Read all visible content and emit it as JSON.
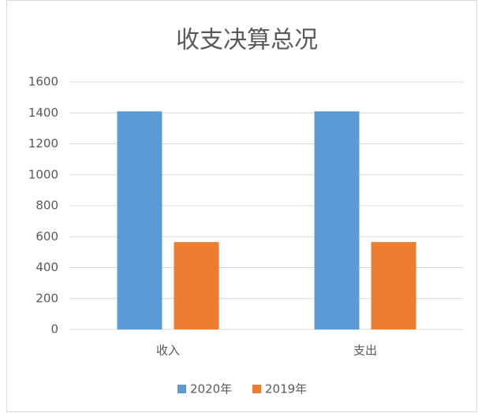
{
  "chart_data": {
    "type": "bar",
    "title": "收支决算总况",
    "categories": [
      "收入",
      "支出"
    ],
    "series": [
      {
        "name": "2020年",
        "color": "#5b9bd5",
        "values": [
          1410,
          1410
        ]
      },
      {
        "name": "2019年",
        "color": "#ed7d31",
        "values": [
          565,
          565
        ]
      }
    ],
    "ylim": [
      0,
      1600
    ],
    "yticks": [
      0,
      200,
      400,
      600,
      800,
      1000,
      1200,
      1400,
      1600
    ],
    "grid": true,
    "legend": "bottom"
  }
}
